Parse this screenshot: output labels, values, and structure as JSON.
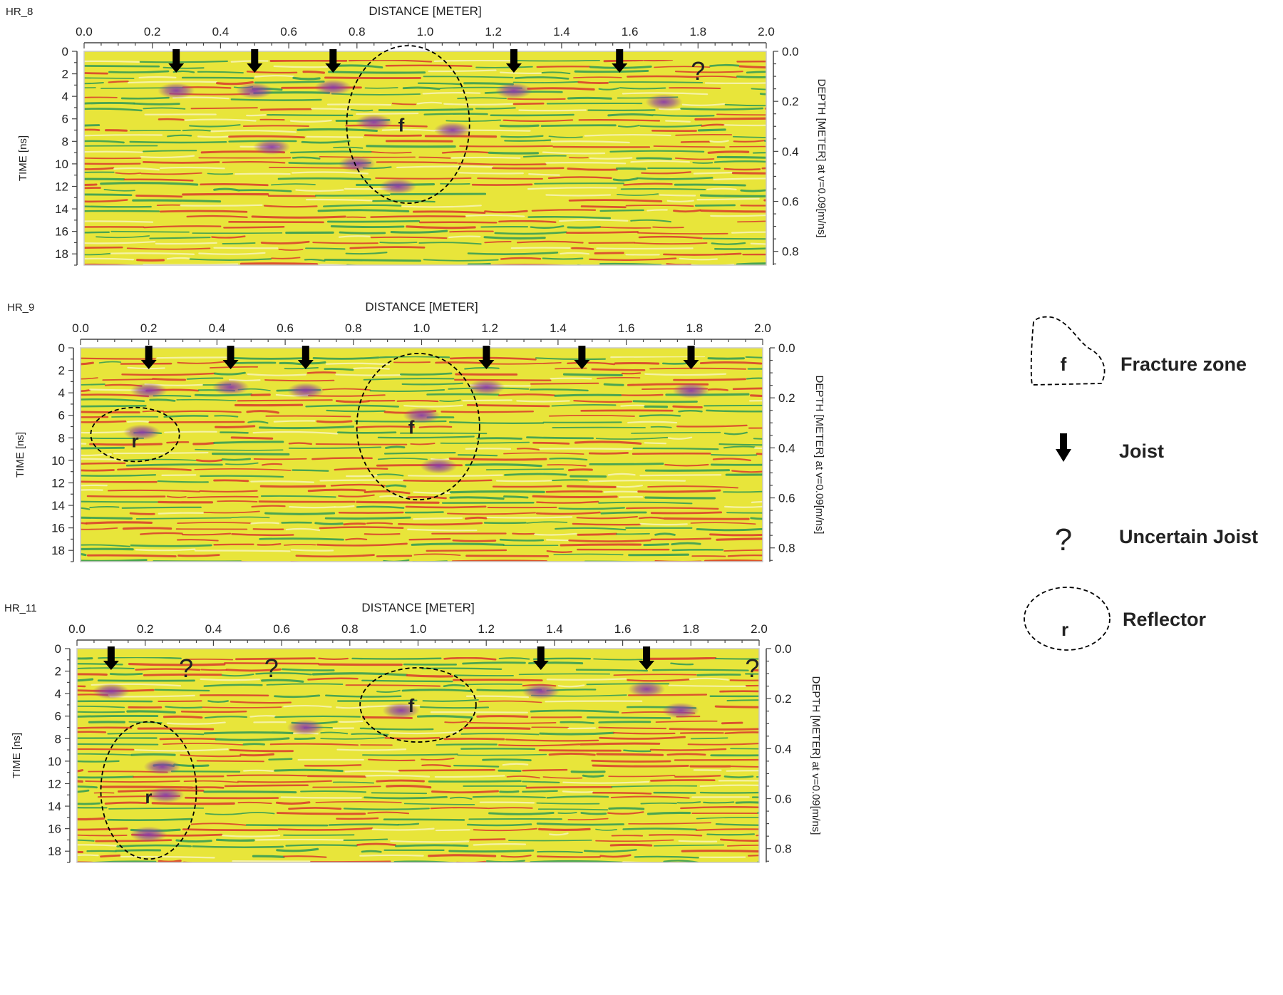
{
  "chart_data": [
    {
      "type": "heatmap",
      "profile_label": "HR_8",
      "xlabel": "DISTANCE [METER]",
      "ylabel": "TIME [ns]",
      "y2label": "DEPTH [METER] at v=0.09[m/ns]",
      "xlim": [
        0.0,
        2.0
      ],
      "ylim": [
        0,
        19
      ],
      "y2lim": [
        0.0,
        0.855
      ],
      "x_ticks": [
        "0.0",
        "0.2",
        "0.4",
        "0.6",
        "0.8",
        "1.0",
        "1.2",
        "1.4",
        "1.6",
        "1.8",
        "2.0"
      ],
      "y_ticks": [
        "0",
        "2",
        "4",
        "6",
        "8",
        "10",
        "12",
        "14",
        "16",
        "18"
      ],
      "y2_ticks": [
        "0.0",
        "0.2",
        "0.4",
        "0.6",
        "0.8"
      ],
      "joists": [
        0.27,
        0.5,
        0.73,
        1.26,
        1.57
      ],
      "uncertain_joists": [
        1.8
      ],
      "fracture_zones": [
        {
          "label": "f",
          "x_center": 0.95,
          "t_center": 6.5,
          "x_radius": 0.18,
          "t_radius": 7.0
        }
      ],
      "reflectors": [],
      "anomalies": [
        [
          0.27,
          3.5
        ],
        [
          0.5,
          3.5
        ],
        [
          0.73,
          3.2
        ],
        [
          1.26,
          3.5
        ],
        [
          0.55,
          8.5
        ],
        [
          0.85,
          6.3
        ],
        [
          1.08,
          7.0
        ],
        [
          0.92,
          12.0
        ],
        [
          1.7,
          4.5
        ],
        [
          0.8,
          10.0
        ]
      ]
    },
    {
      "type": "heatmap",
      "profile_label": "HR_9",
      "xlabel": "DISTANCE [METER]",
      "ylabel": "TIME [ns]",
      "y2label": "DEPTH [METER] at v=0.09[m/ns]",
      "xlim": [
        0.0,
        2.0
      ],
      "ylim": [
        0,
        19
      ],
      "y2lim": [
        0.0,
        0.855
      ],
      "x_ticks": [
        "0.0",
        "0.2",
        "0.4",
        "0.6",
        "0.8",
        "1.0",
        "1.2",
        "1.4",
        "1.6",
        "1.8",
        "2.0"
      ],
      "y_ticks": [
        "0",
        "2",
        "4",
        "6",
        "8",
        "10",
        "12",
        "14",
        "16",
        "18"
      ],
      "y2_ticks": [
        "0.0",
        "0.2",
        "0.4",
        "0.6",
        "0.8"
      ],
      "joists": [
        0.2,
        0.44,
        0.66,
        1.19,
        1.47,
        1.79
      ],
      "uncertain_joists": [],
      "fracture_zones": [
        {
          "label": "f",
          "x_center": 0.99,
          "t_center": 7.0,
          "x_radius": 0.18,
          "t_radius": 6.5
        }
      ],
      "reflectors": [
        {
          "label": "r",
          "x_center": 0.16,
          "t_center": 7.7,
          "x_radius": 0.13,
          "t_radius": 2.4
        }
      ],
      "anomalies": [
        [
          0.2,
          3.8
        ],
        [
          0.44,
          3.5
        ],
        [
          0.66,
          3.8
        ],
        [
          1.19,
          3.5
        ],
        [
          1.79,
          3.8
        ],
        [
          0.18,
          7.5
        ],
        [
          1.0,
          6.0
        ],
        [
          1.05,
          10.5
        ]
      ]
    },
    {
      "type": "heatmap",
      "profile_label": "HR_11",
      "xlabel": "DISTANCE [METER]",
      "ylabel": "TIME [ns]",
      "y2label": "DEPTH [METER] at v=0.09[m/ns]",
      "xlim": [
        0.0,
        2.0
      ],
      "ylim": [
        0,
        19
      ],
      "y2lim": [
        0.0,
        0.855
      ],
      "x_ticks": [
        "0.0",
        "0.2",
        "0.4",
        "0.6",
        "0.8",
        "1.0",
        "1.2",
        "1.4",
        "1.6",
        "1.8",
        "2.0"
      ],
      "y_ticks": [
        "0",
        "2",
        "4",
        "6",
        "8",
        "10",
        "12",
        "14",
        "16",
        "18"
      ],
      "y2_ticks": [
        "0.0",
        "0.2",
        "0.4",
        "0.6",
        "0.8"
      ],
      "joists": [
        0.1,
        1.36,
        1.67
      ],
      "uncertain_joists": [
        0.32,
        0.57,
        1.98
      ],
      "fracture_zones": [
        {
          "label": "f",
          "x_center": 1.0,
          "t_center": 5.0,
          "x_radius": 0.17,
          "t_radius": 3.3
        }
      ],
      "reflectors": [
        {
          "label": "r",
          "x_center": 0.21,
          "t_center": 12.6,
          "x_radius": 0.14,
          "t_radius": 6.1
        }
      ],
      "anomalies": [
        [
          0.1,
          3.8
        ],
        [
          0.67,
          7.0
        ],
        [
          1.36,
          3.8
        ],
        [
          1.67,
          3.6
        ],
        [
          1.77,
          5.5
        ],
        [
          0.26,
          13.0
        ],
        [
          0.21,
          16.5
        ],
        [
          0.25,
          10.5
        ],
        [
          0.95,
          5.5
        ]
      ]
    }
  ],
  "legend": {
    "fracture_zone": {
      "symbol": "f",
      "label": "Fracture zone"
    },
    "joist": {
      "label": "Joist"
    },
    "uncertain_joist": {
      "symbol": "?",
      "label": "Uncertain Joist"
    },
    "reflector": {
      "symbol": "r",
      "label": "Reflector"
    }
  },
  "colors": {
    "background": "#e8e53a",
    "band_red": "#d83a2c",
    "band_green": "#2e9a55",
    "band_light": "#f7f5b8",
    "anomaly": "#8a3aa8",
    "annotation": "#000000"
  }
}
